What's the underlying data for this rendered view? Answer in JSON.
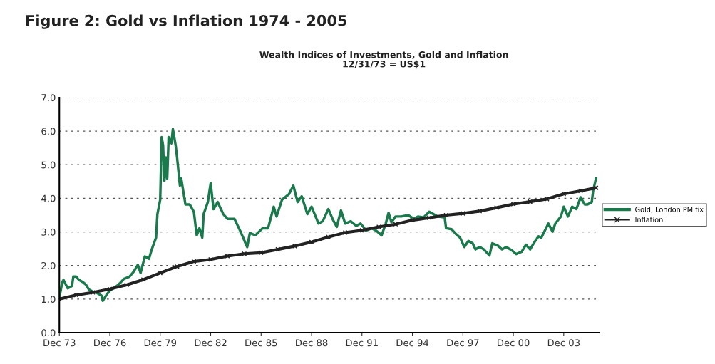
{
  "chart_data": {
    "type": "line",
    "title": "Figure 2: Gold vs Inflation 1974 - 2005",
    "subtitle": "Wealth Indices of Investments, Gold and Inflation\n12/31/73 = US$1",
    "xlim": [
      "1973-12",
      "2006-01"
    ],
    "xticks": [
      {
        "value": "1973-12",
        "label": "Dec 73"
      },
      {
        "value": "1976-12",
        "label": "Dec 76"
      },
      {
        "value": "1979-12",
        "label": "Dec 79"
      },
      {
        "value": "1982-12",
        "label": "Dec 82"
      },
      {
        "value": "1985-12",
        "label": "Dec 85"
      },
      {
        "value": "1988-12",
        "label": "Dec 88"
      },
      {
        "value": "1991-12",
        "label": "Dec 91"
      },
      {
        "value": "1994-12",
        "label": "Dec 94"
      },
      {
        "value": "1997-12",
        "label": "Dec 97"
      },
      {
        "value": "2000-12",
        "label": "Dec 00"
      },
      {
        "value": "2003-12",
        "label": "Dec 03"
      }
    ],
    "ylim": [
      0,
      7
    ],
    "yticks": [
      {
        "value": 0,
        "label": "0.0"
      },
      {
        "value": 1,
        "label": "1.0"
      },
      {
        "value": 2,
        "label": "2.0"
      },
      {
        "value": 3,
        "label": "3.0"
      },
      {
        "value": 4,
        "label": "4.0"
      },
      {
        "value": 5,
        "label": "5.0"
      },
      {
        "value": 6,
        "label": "6.0"
      },
      {
        "value": 7,
        "label": "7.0"
      }
    ],
    "grid": "y",
    "legend": "right",
    "series": [
      {
        "name": "Gold, London PM fix",
        "color": "#1a7a4c",
        "marker": "none",
        "x": [
          "1973-12",
          "1974-02",
          "1974-03",
          "1974-06",
          "1974-09",
          "1974-10",
          "1974-12",
          "1975-02",
          "1975-05",
          "1975-07",
          "1975-09",
          "1975-12",
          "1976-03",
          "1976-06",
          "1976-07",
          "1976-10",
          "1976-12",
          "1977-05",
          "1977-07",
          "1977-10",
          "1978-02",
          "1978-05",
          "1978-08",
          "1978-10",
          "1979-01",
          "1979-04",
          "1979-06",
          "1979-09",
          "1979-10",
          "1979-12",
          "1980-01",
          "1980-02",
          "1980-03",
          "1980-04",
          "1980-05",
          "1980-06",
          "1980-08",
          "1980-09",
          "1980-11",
          "1980-12",
          "1981-02",
          "1981-03",
          "1981-06",
          "1981-09",
          "1981-12",
          "1982-02",
          "1982-04",
          "1982-06",
          "1982-07",
          "1982-10",
          "1982-12",
          "1983-02",
          "1983-05",
          "1983-09",
          "1983-12",
          "1984-05",
          "1984-09",
          "1985-02",
          "1985-04",
          "1985-08",
          "1986-01",
          "1986-05",
          "1986-09",
          "1986-11",
          "1987-03",
          "1987-08",
          "1987-11",
          "1988-02",
          "1988-05",
          "1988-09",
          "1988-12",
          "1989-05",
          "1989-08",
          "1989-12",
          "1990-03",
          "1990-06",
          "1990-09",
          "1990-12",
          "1991-04",
          "1991-08",
          "1991-11",
          "1992-03",
          "1992-07",
          "1992-10",
          "1993-02",
          "1993-05",
          "1993-07",
          "1993-09",
          "1993-12",
          "1994-04",
          "1994-09",
          "1995-01",
          "1995-04",
          "1995-08",
          "1995-12",
          "1996-06",
          "1996-11",
          "1996-12",
          "1997-04",
          "1997-07",
          "1997-10",
          "1998-01",
          "1998-04",
          "1998-07",
          "1998-09",
          "1998-12",
          "1999-03",
          "1999-07",
          "1999-09",
          "2000-01",
          "2000-04",
          "2000-07",
          "2000-11",
          "2001-02",
          "2001-06",
          "2001-09",
          "2001-12",
          "2002-03",
          "2002-06",
          "2002-08",
          "2002-11",
          "2003-01",
          "2003-04",
          "2003-06",
          "2003-10",
          "2003-12",
          "2004-03",
          "2004-06",
          "2004-09",
          "2004-12",
          "2005-03",
          "2005-05",
          "2005-08",
          "2005-09",
          "2005-11"
        ],
        "values": [
          1.04,
          1.5,
          1.57,
          1.32,
          1.39,
          1.67,
          1.67,
          1.57,
          1.5,
          1.43,
          1.29,
          1.22,
          1.18,
          1.11,
          0.95,
          1.15,
          1.25,
          1.39,
          1.46,
          1.6,
          1.67,
          1.81,
          2.02,
          1.78,
          2.27,
          2.2,
          2.48,
          2.83,
          3.53,
          3.96,
          5.82,
          5.57,
          4.52,
          5.22,
          4.59,
          5.82,
          5.64,
          6.06,
          5.57,
          5.22,
          4.38,
          4.59,
          3.82,
          3.82,
          3.6,
          2.9,
          3.11,
          2.83,
          3.53,
          3.89,
          4.45,
          3.68,
          3.89,
          3.53,
          3.39,
          3.39,
          3.04,
          2.55,
          2.97,
          2.9,
          3.11,
          3.11,
          3.75,
          3.46,
          3.96,
          4.13,
          4.38,
          3.89,
          4.06,
          3.53,
          3.75,
          3.25,
          3.32,
          3.68,
          3.39,
          3.15,
          3.64,
          3.25,
          3.32,
          3.18,
          3.25,
          3.04,
          3.11,
          3.04,
          2.9,
          3.25,
          3.57,
          3.29,
          3.46,
          3.46,
          3.5,
          3.39,
          3.46,
          3.43,
          3.6,
          3.46,
          3.43,
          3.11,
          3.08,
          2.94,
          2.83,
          2.55,
          2.73,
          2.66,
          2.48,
          2.55,
          2.48,
          2.3,
          2.66,
          2.59,
          2.48,
          2.55,
          2.45,
          2.34,
          2.41,
          2.62,
          2.48,
          2.69,
          2.87,
          2.83,
          3.08,
          3.25,
          3.01,
          3.25,
          3.46,
          3.75,
          3.46,
          3.75,
          3.68,
          4.03,
          3.82,
          3.82,
          3.89,
          4.24,
          4.59
        ]
      },
      {
        "name": "Inflation",
        "color": "#222222",
        "marker": "cross",
        "x": [
          "1973-12",
          "1974-12",
          "1975-12",
          "1976-12",
          "1977-12",
          "1978-12",
          "1979-12",
          "1980-12",
          "1981-12",
          "1982-12",
          "1983-12",
          "1984-12",
          "1985-12",
          "1986-12",
          "1987-12",
          "1988-12",
          "1989-12",
          "1990-12",
          "1991-12",
          "1992-12",
          "1993-12",
          "1994-12",
          "1995-12",
          "1996-12",
          "1997-12",
          "1998-12",
          "1999-12",
          "2000-12",
          "2001-12",
          "2002-12",
          "2003-12",
          "2004-12",
          "2005-11"
        ],
        "values": [
          1.0,
          1.12,
          1.2,
          1.3,
          1.42,
          1.58,
          1.78,
          1.97,
          2.12,
          2.18,
          2.28,
          2.35,
          2.38,
          2.48,
          2.58,
          2.7,
          2.85,
          2.98,
          3.05,
          3.15,
          3.23,
          3.35,
          3.42,
          3.5,
          3.55,
          3.62,
          3.72,
          3.83,
          3.9,
          3.98,
          4.13,
          4.22,
          4.31
        ]
      }
    ]
  }
}
